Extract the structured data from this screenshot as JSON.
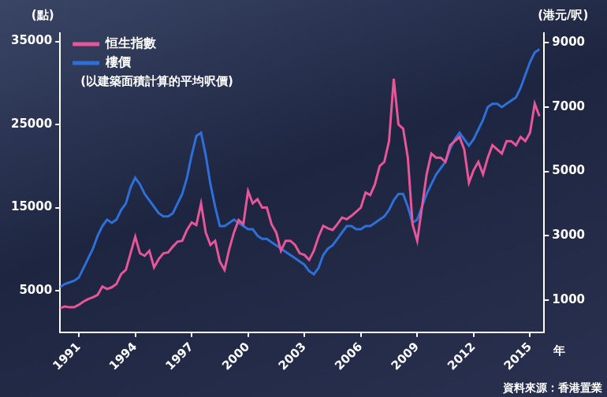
{
  "chart_data": {
    "type": "line",
    "y_label": "(點)",
    "y2_label": "(港元/呎)",
    "x_label": "年",
    "annotations": [
      "(以建築面積計算的平均呎價)"
    ],
    "source": "資料來源：香港置業",
    "legend": "upper left",
    "grid": false,
    "xlim": [
      1990,
      2015.75
    ],
    "xticks": [
      1991,
      1994,
      1997,
      2000,
      2003,
      2006,
      2009,
      2012,
      2015
    ],
    "ylim": [
      0,
      36000
    ],
    "yticks": [
      5000,
      15000,
      25000,
      35000
    ],
    "y2lim": [
      0,
      9300
    ],
    "y2ticks": [
      1000,
      3000,
      5000,
      7000,
      9000
    ],
    "x": [
      1990,
      1990.25,
      1990.5,
      1990.75,
      1991,
      1991.25,
      1991.5,
      1991.75,
      1992,
      1992.25,
      1992.5,
      1992.75,
      1993,
      1993.25,
      1993.5,
      1993.75,
      1994,
      1994.25,
      1994.5,
      1994.75,
      1995,
      1995.25,
      1995.5,
      1995.75,
      1996,
      1996.25,
      1996.5,
      1996.75,
      1997,
      1997.25,
      1997.5,
      1997.75,
      1998,
      1998.25,
      1998.5,
      1998.75,
      1999,
      1999.25,
      1999.5,
      1999.75,
      2000,
      2000.25,
      2000.5,
      2000.75,
      2001,
      2001.25,
      2001.5,
      2001.75,
      2002,
      2002.25,
      2002.5,
      2002.75,
      2003,
      2003.25,
      2003.5,
      2003.75,
      2004,
      2004.25,
      2004.5,
      2004.75,
      2005,
      2005.25,
      2005.5,
      2005.75,
      2006,
      2006.25,
      2006.5,
      2006.75,
      2007,
      2007.25,
      2007.5,
      2007.75,
      2008,
      2008.25,
      2008.5,
      2008.75,
      2009,
      2009.25,
      2009.5,
      2009.75,
      2010,
      2010.25,
      2010.5,
      2010.75,
      2011,
      2011.25,
      2011.5,
      2011.75,
      2012,
      2012.25,
      2012.5,
      2012.75,
      2013,
      2013.25,
      2013.5,
      2013.75,
      2014,
      2014.25,
      2014.5,
      2014.75,
      2015,
      2015.25,
      2015.5
    ],
    "series": [
      {
        "name": "恒生指數",
        "color": "#e8569a",
        "axis": "y",
        "values": [
          2900,
          3100,
          3000,
          3000,
          3300,
          3700,
          4000,
          4200,
          4500,
          5500,
          5200,
          5400,
          5800,
          7000,
          7500,
          9500,
          11500,
          9500,
          9200,
          9800,
          7800,
          8800,
          9500,
          9600,
          10300,
          10900,
          11000,
          12300,
          13200,
          12900,
          15500,
          12000,
          10500,
          11000,
          8500,
          7500,
          10000,
          12000,
          13500,
          13000,
          17000,
          15500,
          16000,
          15000,
          15000,
          13000,
          12000,
          9800,
          11000,
          11000,
          10500,
          9500,
          9300,
          8700,
          9800,
          11500,
          12800,
          12500,
          12300,
          13000,
          13800,
          13600,
          14000,
          14500,
          15000,
          16800,
          16500,
          17800,
          20000,
          20500,
          23000,
          30500,
          25000,
          24500,
          21000,
          13000,
          11000,
          15000,
          19000,
          21500,
          21000,
          21000,
          20500,
          22500,
          23000,
          23500,
          22000,
          18000,
          19500,
          20500,
          19000,
          21000,
          22500,
          22000,
          21500,
          23000,
          23000,
          22500,
          23500,
          23000,
          24000,
          27500,
          26000
        ]
      },
      {
        "name": "樓價",
        "color": "#2e6fd8",
        "axis": "y2",
        "values": [
          1400,
          1500,
          1550,
          1600,
          1700,
          2000,
          2300,
          2600,
          3000,
          3300,
          3500,
          3400,
          3500,
          3800,
          4000,
          4500,
          4800,
          4600,
          4300,
          4100,
          3900,
          3700,
          3600,
          3600,
          3700,
          4000,
          4300,
          4800,
          5500,
          6100,
          6200,
          5500,
          4600,
          3900,
          3300,
          3300,
          3400,
          3500,
          3400,
          3300,
          3200,
          3200,
          3000,
          2900,
          2900,
          2800,
          2700,
          2600,
          2500,
          2400,
          2300,
          2200,
          2100,
          1900,
          1800,
          2000,
          2400,
          2600,
          2700,
          2900,
          3100,
          3300,
          3300,
          3200,
          3200,
          3300,
          3300,
          3400,
          3500,
          3600,
          3800,
          4100,
          4300,
          4300,
          3900,
          3400,
          3500,
          3900,
          4300,
          4600,
          4900,
          5100,
          5300,
          5700,
          6000,
          6200,
          6000,
          5800,
          6000,
          6300,
          6600,
          7000,
          7100,
          7100,
          7000,
          7100,
          7200,
          7300,
          7600,
          8000,
          8400,
          8700,
          8800
        ]
      }
    ]
  }
}
